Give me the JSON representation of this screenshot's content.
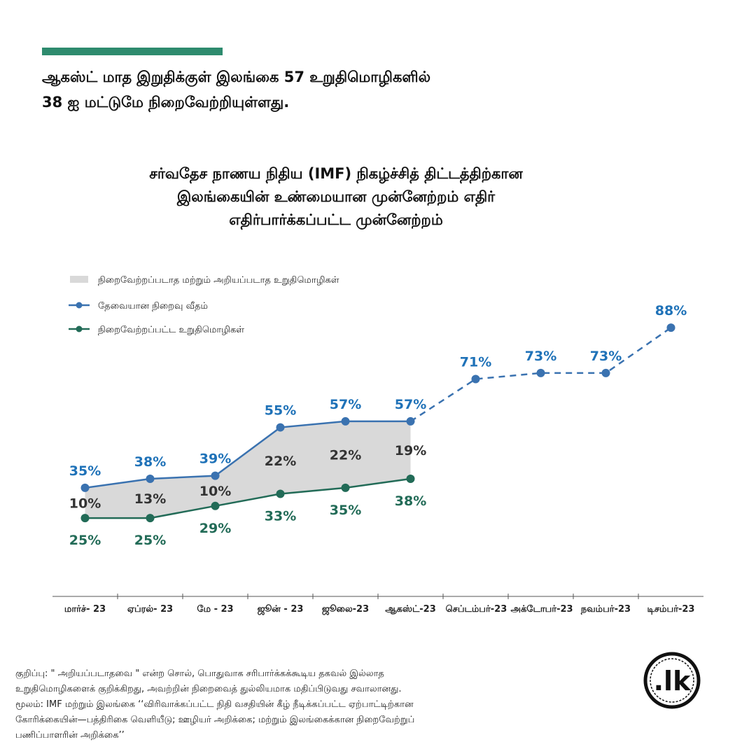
{
  "top_heading": [
    "ஆகஸ்ட் மாத இறுதிக்குள் இலங்கை 57 உறுதிமொழிகளில்",
    "38 ஐ மட்டுமே நிறைவேற்றியுள்ளது."
  ],
  "chart_data": {
    "type": "line",
    "title": [
      "சர்வதேச நாணய நிதிய (IMF) நிகழ்ச்சித் திட்டத்திற்கான",
      "இலங்கையின் உண்மையான முன்னேற்றம் எதிர்",
      "எதிர்பார்க்கப்பட்ட முன்னேற்றம்"
    ],
    "categories": [
      "மார்ச்- 23",
      "ஏப்ரல்- 23",
      "மே - 23",
      "ஜூன் - 23",
      "ஜூலை-23",
      "ஆகஸ்ட்-23",
      "செப்டம்பர்-23",
      "அக்டோபர்-23",
      "நவம்பர்-23",
      "டிசம்பர்-23"
    ],
    "series": [
      {
        "name": "நிறைவேற்றப்படாத மற்றும் அறியப்படாத உறுதிமொழிகள்",
        "color": "#d9d9d9",
        "label_color": "#333333",
        "values": [
          10,
          13,
          10,
          22,
          22,
          19,
          null,
          null,
          null,
          null
        ],
        "value_labels": [
          "10%",
          "13%",
          "10%",
          "22%",
          "22%",
          "19%",
          null,
          null,
          null,
          null
        ]
      },
      {
        "name": "தேவையான நிறைவு வீதம்",
        "color": "#3a72b0",
        "label_color": "#1f72b8",
        "values": [
          35,
          38,
          39,
          55,
          57,
          57,
          71,
          73,
          73,
          88
        ],
        "value_labels": [
          "35%",
          "38%",
          "39%",
          "55%",
          "57%",
          "57%",
          "71%",
          "73%",
          "73%",
          "88%"
        ]
      },
      {
        "name": "நிறைவேற்றப்பட்ட உறுதிமொழிகள்",
        "color": "#226b57",
        "label_color": "#226b57",
        "values": [
          25,
          25,
          29,
          33,
          35,
          38,
          null,
          null,
          null,
          null
        ],
        "value_labels": [
          "25%",
          "25%",
          "29%",
          "33%",
          "35%",
          "38%",
          null,
          null,
          null,
          null
        ]
      }
    ],
    "legend": "upper left"
  },
  "footnote": [
    "குறிப்பு: \" அறியப்படாதவை \" என்ற சொல், பொதுவாக சரிபார்க்கக்கூடிய தகவல் இல்லாத",
    "உறுதிமொழிகளைக் குறிக்கிறது, அவற்றின் நிறைவைத் துல்லியமாக மதிப்பிடுவது சவாலானது.",
    "மூலம்: IMF மற்றும் இலங்கை ‘‘விரிவாக்கப்பட்ட நிதி வசதியின் கீழ் நீடிக்கப்பட்ட ஏற்பாட்டிற்கான",
    "கோரிக்கையின்—பத்திரிகை வெளியீடு; ஊழியர் அறிக்கை; மற்றும் இலங்கைக்கான நிறைவேற்றுப்",
    "பணிப்பாளரின் அறிக்கை’’"
  ],
  "logo": ".lk"
}
